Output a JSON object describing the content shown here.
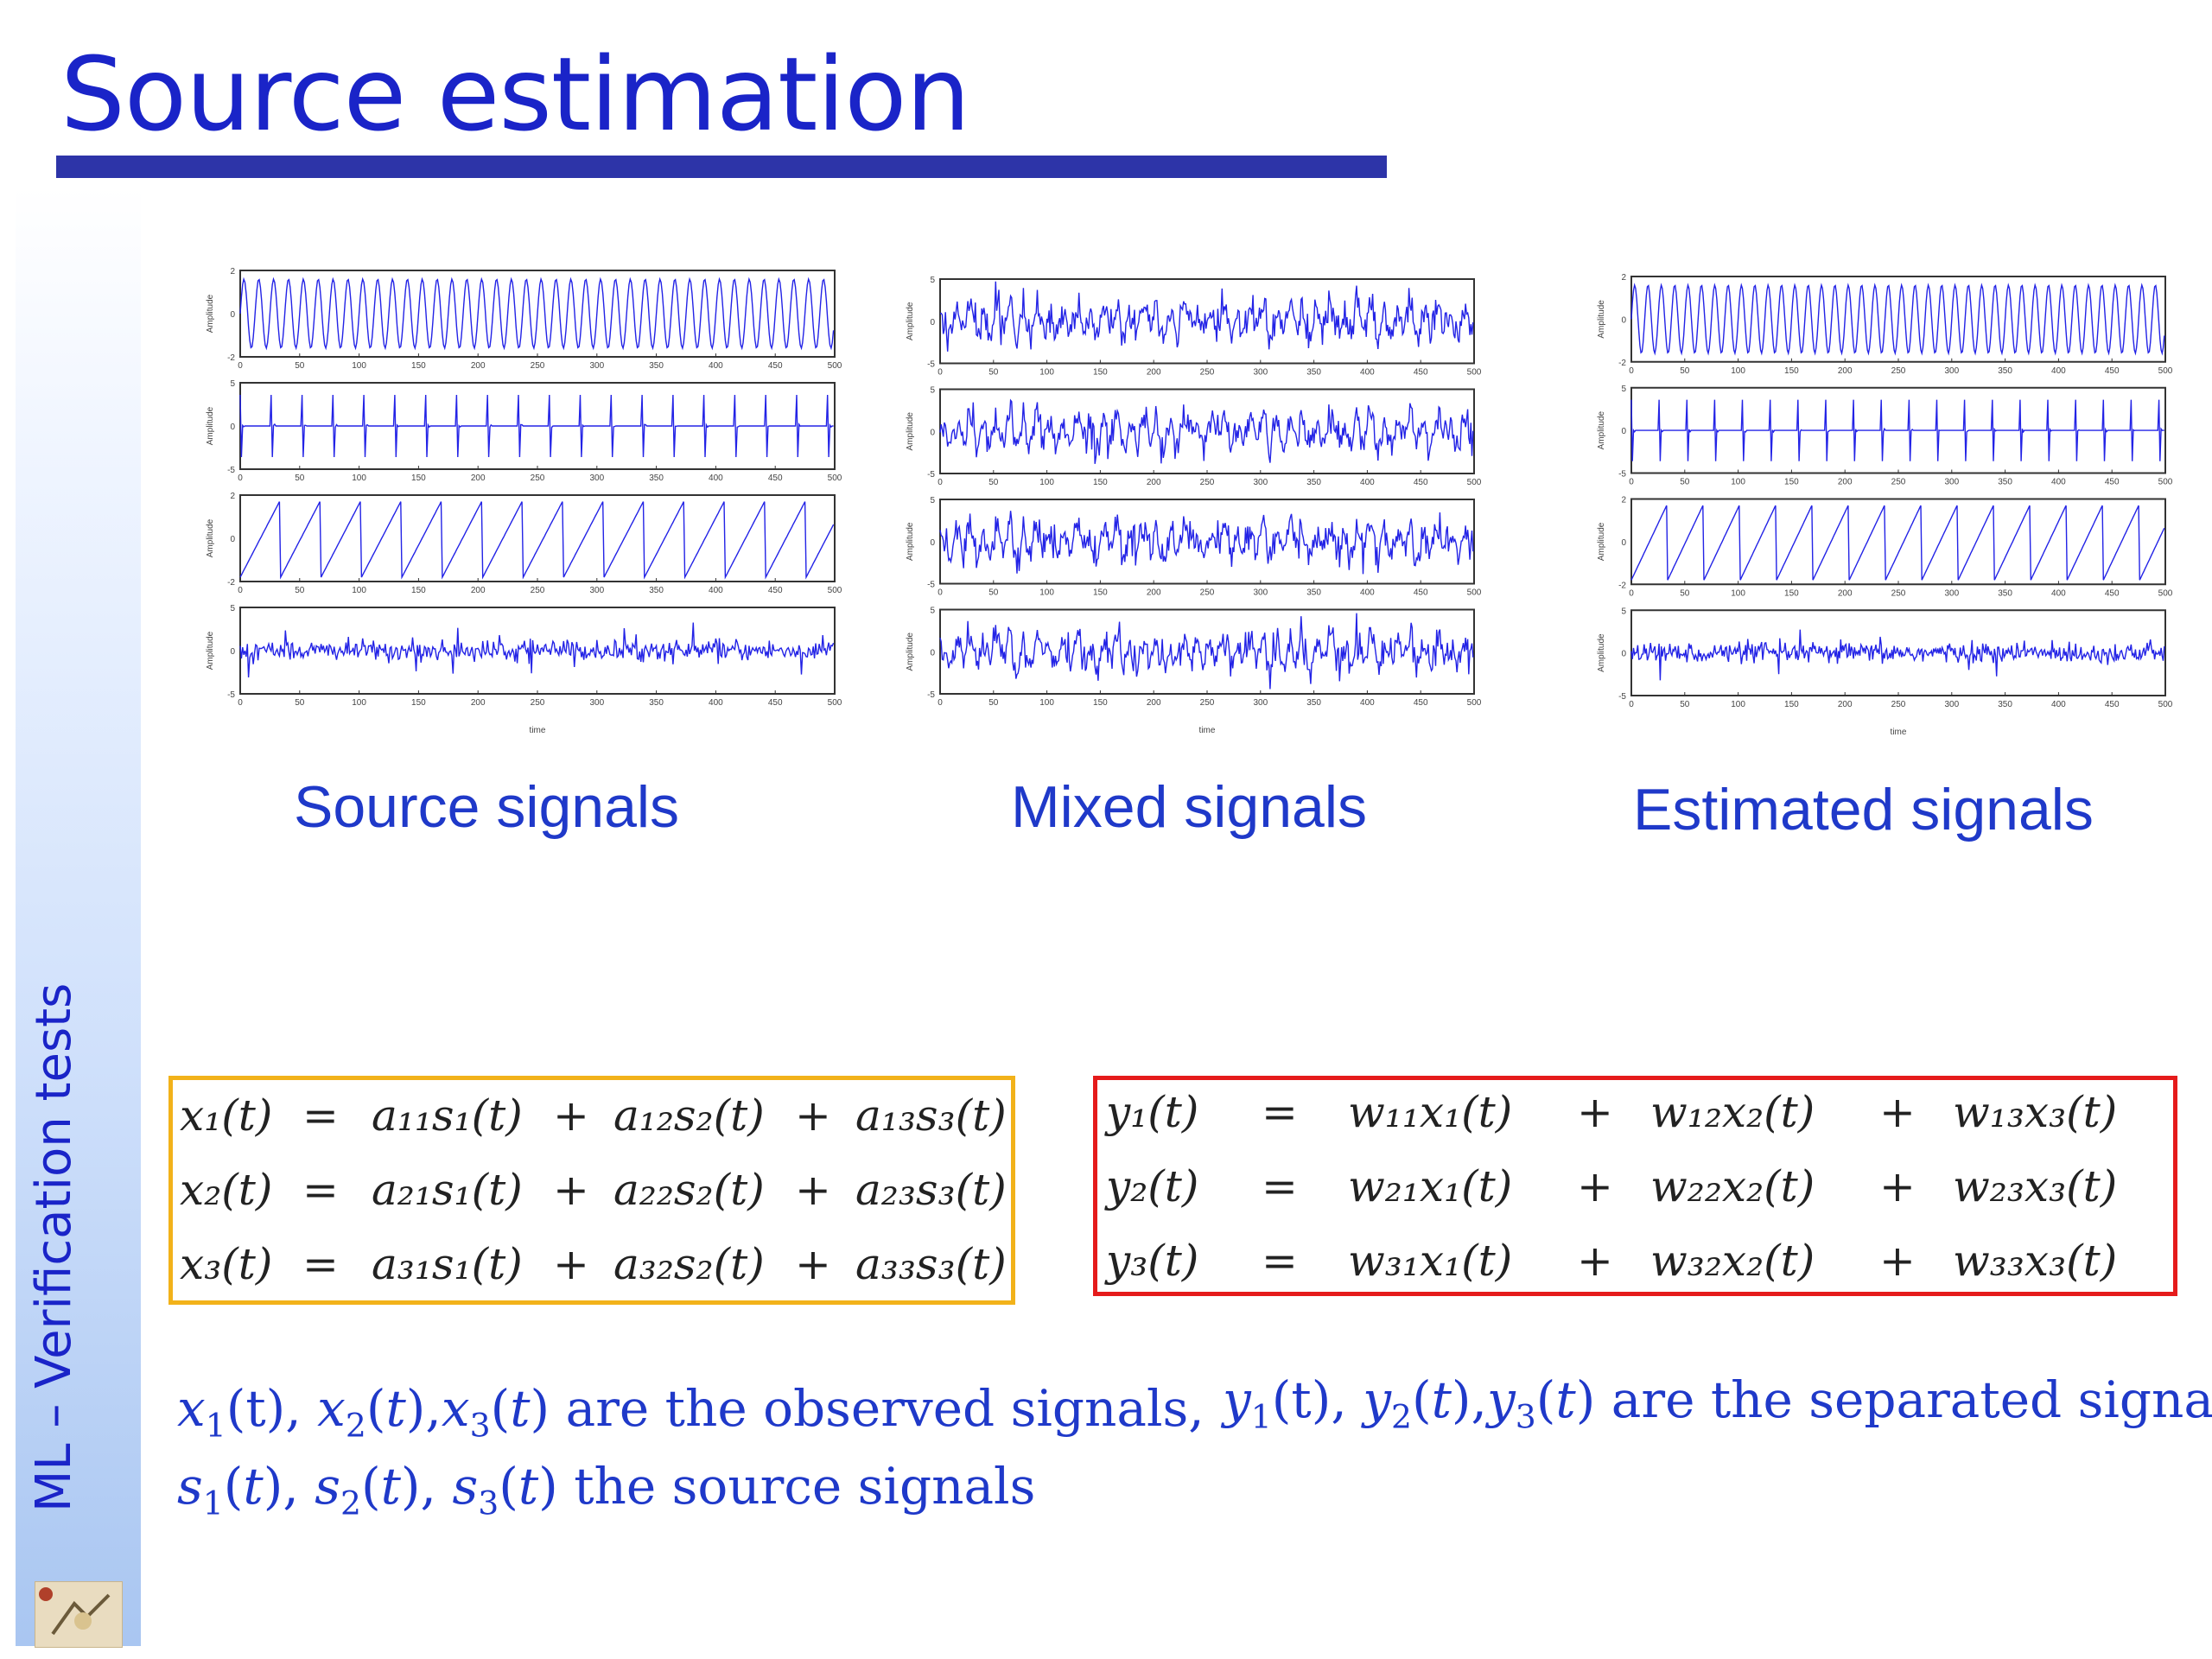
{
  "slide": {
    "title": "Source estimation",
    "side_label": "ML – Verification tests"
  },
  "panels": [
    {
      "caption": "Source signals",
      "xlabel": "time",
      "ylabel": "Amplitude"
    },
    {
      "caption": "Mixed signals",
      "xlabel": "time",
      "ylabel": "Amplitude"
    },
    {
      "caption": "Estimated signals",
      "xlabel": "time",
      "ylabel": "Amplitude"
    }
  ],
  "chart_data": [
    {
      "type": "line",
      "xlabel": "time",
      "ylabel": "Amplitude",
      "xticks": [
        0,
        50,
        100,
        150,
        200,
        250,
        300,
        350,
        400,
        450,
        500
      ],
      "subplots": [
        {
          "waveform": "sine",
          "ylim": [
            -2,
            2
          ],
          "yticks": [
            -2,
            0,
            2
          ]
        },
        {
          "waveform": "impulse",
          "ylim": [
            -5,
            5
          ],
          "yticks": [
            -5,
            0,
            5
          ]
        },
        {
          "waveform": "sawtooth",
          "ylim": [
            -2,
            2
          ],
          "yticks": [
            -2,
            0,
            2
          ]
        },
        {
          "waveform": "noise",
          "ylim": [
            -5,
            5
          ],
          "yticks": [
            -5,
            0,
            5
          ]
        }
      ]
    },
    {
      "type": "line",
      "xlabel": "time",
      "ylabel": "Amplitude",
      "xticks": [
        0,
        50,
        100,
        150,
        200,
        250,
        300,
        350,
        400,
        450,
        500
      ],
      "subplots": [
        {
          "waveform": "mixture",
          "ylim": [
            -5,
            5
          ],
          "yticks": [
            -5,
            0,
            5
          ]
        },
        {
          "waveform": "mixture",
          "ylim": [
            -5,
            5
          ],
          "yticks": [
            -5,
            0,
            5
          ]
        },
        {
          "waveform": "mixture",
          "ylim": [
            -5,
            5
          ],
          "yticks": [
            -5,
            0,
            5
          ]
        },
        {
          "waveform": "mixture",
          "ylim": [
            -5,
            5
          ],
          "yticks": [
            -5,
            0,
            5
          ]
        }
      ]
    },
    {
      "type": "line",
      "xlabel": "time",
      "ylabel": "Amplitude",
      "xticks": [
        0,
        50,
        100,
        150,
        200,
        250,
        300,
        350,
        400,
        450,
        500
      ],
      "subplots": [
        {
          "waveform": "sine",
          "ylim": [
            -2,
            2
          ],
          "yticks": [
            -2,
            0,
            2
          ]
        },
        {
          "waveform": "impulse",
          "ylim": [
            -5,
            5
          ],
          "yticks": [
            -5,
            0,
            5
          ]
        },
        {
          "waveform": "sawtooth",
          "ylim": [
            -2,
            2
          ],
          "yticks": [
            -2,
            0,
            2
          ]
        },
        {
          "waveform": "noise",
          "ylim": [
            -5,
            5
          ],
          "yticks": [
            -5,
            0,
            5
          ]
        }
      ]
    }
  ],
  "equations_left": [
    [
      "x₁(t)",
      "=",
      "a₁₁s₁(t)",
      "+",
      "a₁₂s₂(t)",
      "+",
      "a₁₃s₃(t)"
    ],
    [
      "x₂(t)",
      "=",
      "a₂₁s₁(t)",
      "+",
      "a₂₂s₂(t)",
      "+",
      "a₂₃s₃(t)"
    ],
    [
      "x₃(t)",
      "=",
      "a₃₁s₁(t)",
      "+",
      "a₃₂s₂(t)",
      "+",
      "a₃₃s₃(t)"
    ]
  ],
  "equations_right": [
    [
      "y₁(t)",
      "=",
      "w₁₁x₁(t)",
      "+",
      "w₁₂x₂(t)",
      "+",
      "w₁₃x₃(t)"
    ],
    [
      "y₂(t)",
      "=",
      "w₂₁x₁(t)",
      "+",
      "w₂₂x₂(t)",
      "+",
      "w₂₃x₃(t)"
    ],
    [
      "y₃(t)",
      "=",
      "w₃₁x₁(t)",
      "+",
      "w₃₂x₂(t)",
      "+",
      "w₃₃x₃(t)"
    ]
  ],
  "notes": {
    "observed_line1_rest": " are the observed signals,",
    "observed_line2_rest": " the source signals",
    "separated_rest": " are the separated signals"
  },
  "colors": {
    "title": "#1a24c8",
    "caption": "#1f39c9",
    "signal": "#2323e6",
    "left_box": "#f2b21a",
    "right_box": "#e51b1b"
  }
}
